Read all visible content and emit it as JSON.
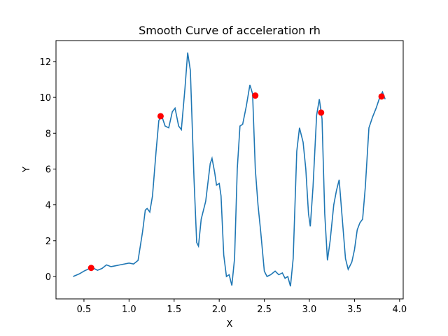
{
  "chart_data": {
    "type": "line",
    "title": "Smooth Curve of acceleration rh",
    "x_label": "X",
    "y_label": "Y",
    "x": [
      0.38,
      0.45,
      0.5,
      0.55,
      0.6,
      0.65,
      0.7,
      0.75,
      0.8,
      0.85,
      0.9,
      0.95,
      1.0,
      1.05,
      1.1,
      1.15,
      1.18,
      1.2,
      1.23,
      1.26,
      1.3,
      1.33,
      1.36,
      1.4,
      1.44,
      1.48,
      1.51,
      1.55,
      1.58,
      1.62,
      1.65,
      1.68,
      1.72,
      1.75,
      1.77,
      1.8,
      1.85,
      1.9,
      1.92,
      1.95,
      1.97,
      2.0,
      2.02,
      2.05,
      2.08,
      2.11,
      2.14,
      2.17,
      2.2,
      2.23,
      2.26,
      2.3,
      2.34,
      2.37,
      2.4,
      2.43,
      2.46,
      2.5,
      2.53,
      2.57,
      2.62,
      2.66,
      2.7,
      2.73,
      2.76,
      2.79,
      2.82,
      2.86,
      2.89,
      2.93,
      2.96,
      2.99,
      3.01,
      3.04,
      3.08,
      3.11,
      3.14,
      3.17,
      3.2,
      3.23,
      3.27,
      3.3,
      3.33,
      3.36,
      3.4,
      3.43,
      3.47,
      3.5,
      3.53,
      3.56,
      3.59,
      3.62,
      3.66,
      3.7,
      3.74,
      3.78,
      3.81,
      3.84
    ],
    "values": [
      0.0,
      0.15,
      0.3,
      0.42,
      0.48,
      0.35,
      0.45,
      0.65,
      0.55,
      0.6,
      0.65,
      0.7,
      0.75,
      0.7,
      0.9,
      2.5,
      3.7,
      3.8,
      3.6,
      4.5,
      7.0,
      8.7,
      9.0,
      8.4,
      8.3,
      9.2,
      9.4,
      8.4,
      8.2,
      10.5,
      12.5,
      11.5,
      5.5,
      1.9,
      1.7,
      3.2,
      4.2,
      6.3,
      6.6,
      5.8,
      5.1,
      5.2,
      4.5,
      1.2,
      0.0,
      0.1,
      -0.5,
      1.0,
      6.0,
      8.4,
      8.5,
      9.5,
      10.7,
      10.2,
      6.0,
      4.0,
      2.5,
      0.3,
      0.0,
      0.1,
      0.3,
      0.1,
      0.2,
      -0.1,
      0.0,
      -0.55,
      1.0,
      7.0,
      8.3,
      7.5,
      6.0,
      3.5,
      2.8,
      5.0,
      9.0,
      9.9,
      8.8,
      3.5,
      0.9,
      2.0,
      4.0,
      4.8,
      5.4,
      3.5,
      1.0,
      0.4,
      0.8,
      1.5,
      2.6,
      3.0,
      3.2,
      5.0,
      8.3,
      8.9,
      9.4,
      10.0,
      10.3,
      9.9
    ],
    "color": "#1f77b4",
    "points": {
      "x": [
        0.58,
        1.35,
        2.4,
        3.13,
        3.8
      ],
      "values": [
        0.48,
        8.95,
        10.1,
        9.15,
        10.05
      ],
      "color": "#ff0000"
    },
    "xlim": [
      0.19,
      4.04
    ],
    "ylim": [
      -1.25,
      13.17
    ],
    "xticks": [
      0.5,
      {
        "value": 1,
        "label": "1.0"
      },
      1.5,
      {
        "value": 2,
        "label": "2.0"
      },
      2.5,
      {
        "value": 3,
        "label": "3.0"
      },
      3.5,
      {
        "value": 4,
        "label": "4.0"
      }
    ],
    "yticks": [
      0,
      2,
      4,
      6,
      8,
      10,
      12
    ]
  }
}
